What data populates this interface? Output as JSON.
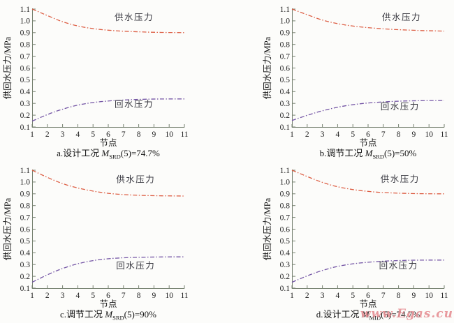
{
  "page": {
    "background": "#fcfcfa"
  },
  "watermark": {
    "text": "www.Egas.cu",
    "color": "#e5898f"
  },
  "axis": {
    "color": "#75806f",
    "tick_label_color": "#1e1e1e"
  },
  "chart_data": [
    {
      "id": "a",
      "type": "line",
      "xlabel": "节点",
      "ylabel": "供回水压力/MPa",
      "xlim": [
        1,
        11
      ],
      "ylim": [
        0.1,
        1.1
      ],
      "ytick_step": 0.1,
      "x": [
        1,
        2,
        3,
        4,
        5,
        6,
        7,
        8,
        9,
        10,
        11
      ],
      "title_caption": {
        "prefix": "a.设计工况 ",
        "var": "M",
        "sub": "SRD",
        "suffix": "(5)=74.7%"
      },
      "series": [
        {
          "name": "供水压力",
          "color": "#dd5f45",
          "label_at": [
            7.7,
            1.005
          ],
          "values": [
            1.1,
            1.045,
            0.99,
            0.955,
            0.933,
            0.92,
            0.912,
            0.907,
            0.903,
            0.901,
            0.9
          ]
        },
        {
          "name": "回水压力",
          "color": "#7455a5",
          "label_at": [
            7.7,
            0.268
          ],
          "values": [
            0.15,
            0.207,
            0.252,
            0.287,
            0.308,
            0.321,
            0.329,
            0.334,
            0.337,
            0.338,
            0.338
          ]
        }
      ]
    },
    {
      "id": "b",
      "type": "line",
      "xlabel": "节点",
      "ylabel": "供回水压力/MPa",
      "xlim": [
        1,
        11
      ],
      "ylim": [
        0.1,
        1.1
      ],
      "ytick_step": 0.1,
      "x": [
        1,
        2,
        3,
        4,
        5,
        6,
        7,
        8,
        9,
        10,
        11
      ],
      "title_caption": {
        "prefix": "b.调节工况 ",
        "var": "M",
        "sub": "SRD",
        "suffix": "(5)=50%"
      },
      "series": [
        {
          "name": "供水压力",
          "color": "#dd5f45",
          "label_at": [
            8.2,
            1.005
          ],
          "values": [
            1.1,
            1.052,
            1.005,
            0.975,
            0.955,
            0.942,
            0.932,
            0.925,
            0.92,
            0.916,
            0.913
          ]
        },
        {
          "name": "回水压力",
          "color": "#7455a5",
          "label_at": [
            8.1,
            0.248
          ],
          "values": [
            0.155,
            0.2,
            0.238,
            0.268,
            0.29,
            0.304,
            0.313,
            0.319,
            0.322,
            0.324,
            0.325
          ]
        }
      ]
    },
    {
      "id": "c",
      "type": "line",
      "xlabel": "节点",
      "ylabel": "供回水压力/MPa",
      "xlim": [
        1,
        11
      ],
      "ylim": [
        0.1,
        1.1
      ],
      "ytick_step": 0.1,
      "x": [
        1,
        2,
        3,
        4,
        5,
        6,
        7,
        8,
        9,
        10,
        11
      ],
      "title_caption": {
        "prefix": "c.调节工况 ",
        "var": "M",
        "sub": "SRD",
        "suffix": "(5)=90%"
      },
      "series": [
        {
          "name": "供水压力",
          "color": "#dd5f45",
          "label_at": [
            7.8,
            0.995
          ],
          "values": [
            1.1,
            1.038,
            0.985,
            0.948,
            0.922,
            0.903,
            0.893,
            0.887,
            0.884,
            0.882,
            0.881
          ]
        },
        {
          "name": "回水压力",
          "color": "#7455a5",
          "label_at": [
            7.8,
            0.265
          ],
          "values": [
            0.15,
            0.215,
            0.268,
            0.308,
            0.335,
            0.35,
            0.358,
            0.362,
            0.364,
            0.365,
            0.365
          ]
        }
      ]
    },
    {
      "id": "d",
      "type": "line",
      "xlabel": "节点",
      "ylabel": "供回水压力/MPa",
      "xlim": [
        1,
        11
      ],
      "ylim": [
        0.1,
        1.1
      ],
      "ytick_step": 0.1,
      "x": [
        1,
        2,
        3,
        4,
        5,
        6,
        7,
        8,
        9,
        10,
        11
      ],
      "title_caption": {
        "prefix": "d.设计工况 ",
        "var": "M",
        "sub": "MID",
        "suffix": "(5)=74.7%"
      },
      "series": [
        {
          "name": "供水压力",
          "color": "#dd5f45",
          "label_at": [
            8.1,
            1.0
          ],
          "values": [
            1.1,
            1.046,
            0.995,
            0.958,
            0.935,
            0.92,
            0.91,
            0.905,
            0.902,
            0.9,
            0.9
          ]
        },
        {
          "name": "回水压力",
          "color": "#7455a5",
          "label_at": [
            8.0,
            0.265
          ],
          "values": [
            0.15,
            0.206,
            0.251,
            0.286,
            0.307,
            0.32,
            0.329,
            0.334,
            0.337,
            0.338,
            0.338
          ]
        }
      ]
    }
  ]
}
